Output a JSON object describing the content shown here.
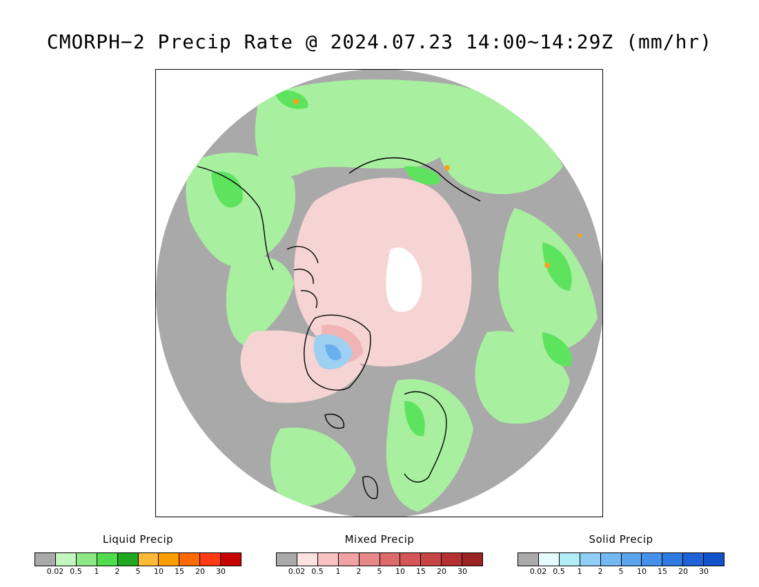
{
  "title": "CMORPH−2 Precip Rate @ 2024.07.23 14:00∼14:29Z (mm/hr)",
  "map": {
    "projection": "north-polar-stereographic",
    "colors": {
      "background_gray": "#a9a9a9",
      "no_data_white": "#ffffff",
      "coastline": "#000000",
      "light_green": "#a8f0a0",
      "green": "#5ee35e",
      "dark_green": "#2fb83a",
      "light_pink": "#f7d4d4",
      "pink": "#f0b4b4",
      "light_blue": "#9ed0f2",
      "blue": "#6ab0f0",
      "orange": "#f7a21a"
    }
  },
  "legends": [
    {
      "title": "Liquid Precip",
      "colors": [
        "#aaaaaa",
        "#c4f7c0",
        "#8ee888",
        "#4fdc4f",
        "#21a821",
        "#fdb938",
        "#ff9d00",
        "#ff6a00",
        "#ff3b14",
        "#c90000"
      ],
      "ticks": [
        "0.02",
        "0.5",
        "1",
        "2",
        "5",
        "10",
        "15",
        "20",
        "30"
      ]
    },
    {
      "title": "Mixed Precip",
      "colors": [
        "#aaaaaa",
        "#fde2e2",
        "#f8c2c2",
        "#f0a2a4",
        "#e78888",
        "#de6a6a",
        "#d45555",
        "#c74444",
        "#b43030",
        "#9b2222"
      ],
      "ticks": [
        "0.02",
        "0.5",
        "1",
        "2",
        "5",
        "10",
        "15",
        "20",
        "30"
      ]
    },
    {
      "title": "Solid Precip",
      "colors": [
        "#aaaaaa",
        "#e6fcfc",
        "#b2eef7",
        "#90cff5",
        "#74b8f2",
        "#5aa4ee",
        "#4490ea",
        "#2f7ae0",
        "#1f63d6",
        "#1252c8"
      ],
      "ticks": [
        "0.02",
        "0.5",
        "1",
        "2",
        "5",
        "10",
        "15",
        "20",
        "30"
      ]
    }
  ]
}
